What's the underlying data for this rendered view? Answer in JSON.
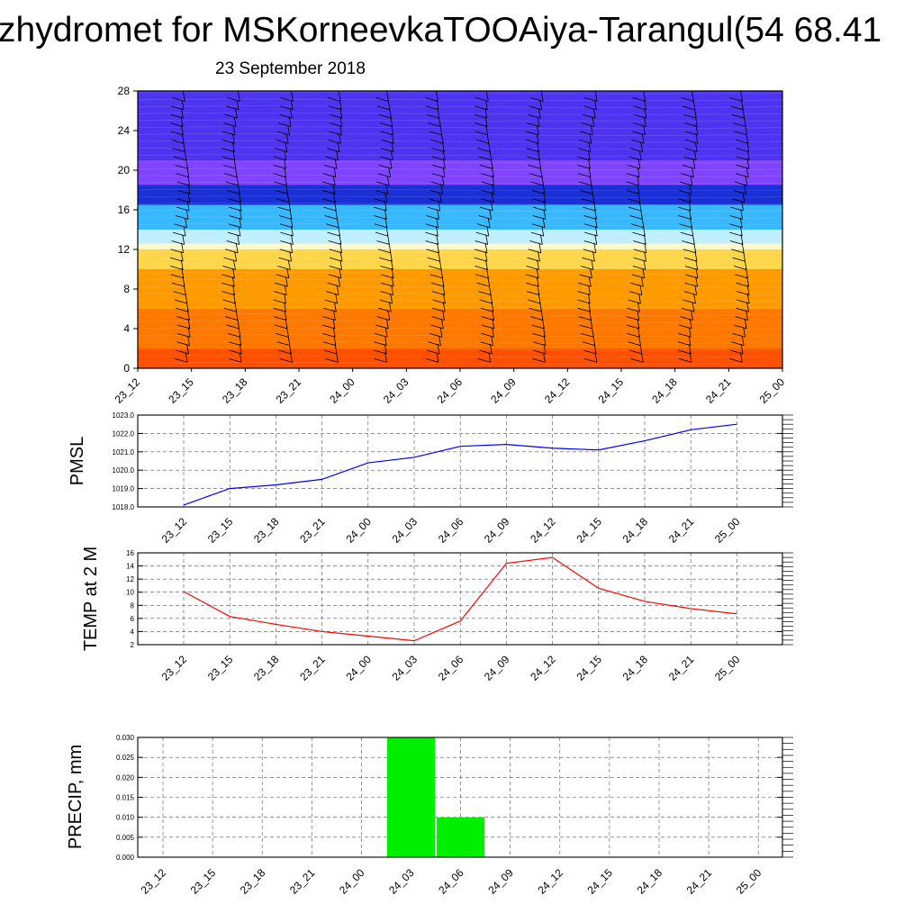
{
  "title": "zhydromet for MSKorneevkaTOOAiya-Tarangul(54 68.41",
  "subtitle": "23 September 2018",
  "time_labels": [
    "23_12",
    "23_15",
    "23_18",
    "23_21",
    "24_00",
    "24_03",
    "24_06",
    "24_09",
    "24_12",
    "24_15",
    "24_18",
    "24_21",
    "25_00"
  ],
  "chart_data": [
    {
      "type": "heatmap",
      "title": "",
      "xlabel": "",
      "ylabel": "",
      "x": [
        "23_12",
        "23_15",
        "23_18",
        "23_21",
        "24_00",
        "24_03",
        "24_06",
        "24_09",
        "24_12",
        "24_15",
        "24_18",
        "24_21",
        "25_00"
      ],
      "ylim": [
        0,
        28
      ],
      "yticks": [
        0,
        4,
        8,
        12,
        16,
        20,
        24,
        28
      ],
      "overlay": "wind barbs",
      "color_bands": [
        {
          "from": 0,
          "to": 2,
          "color": "#ff5000"
        },
        {
          "from": 2,
          "to": 6,
          "color": "#ff7800"
        },
        {
          "from": 6,
          "to": 10,
          "color": "#ff9a00"
        },
        {
          "from": 10,
          "to": 12,
          "color": "#ffd54a"
        },
        {
          "from": 12,
          "to": 12.6,
          "color": "#fff8c8"
        },
        {
          "from": 12.6,
          "to": 14,
          "color": "#bfeeff"
        },
        {
          "from": 14,
          "to": 16.5,
          "color": "#38b8ff"
        },
        {
          "from": 16.5,
          "to": 18.5,
          "color": "#1a2fd6"
        },
        {
          "from": 18.5,
          "to": 21,
          "color": "#7f44ff"
        },
        {
          "from": 21,
          "to": 28,
          "color": "#4e34f0"
        }
      ]
    },
    {
      "type": "line",
      "ylabel": "PMSL",
      "x": [
        "23_12",
        "23_15",
        "23_18",
        "23_21",
        "24_00",
        "24_03",
        "24_06",
        "24_09",
        "24_12",
        "24_15",
        "24_18",
        "24_21",
        "25_00"
      ],
      "series": [
        {
          "values": [
            1018.1,
            1019.0,
            1019.2,
            1019.5,
            1020.4,
            1020.7,
            1021.3,
            1021.4,
            1021.2,
            1021.1,
            1021.6,
            1022.2,
            1022.5
          ],
          "color": "#0000ff"
        }
      ],
      "ylim": [
        1018.0,
        1023.0
      ],
      "yticks": [
        "1018.0",
        "1019.0",
        "1020.0",
        "1021.0",
        "1022.0",
        "1023.0"
      ],
      "grid": true
    },
    {
      "type": "line",
      "ylabel": "TEMP at 2 M",
      "x": [
        "23_12",
        "23_15",
        "23_18",
        "23_21",
        "24_00",
        "24_03",
        "24_06",
        "24_09",
        "24_12",
        "24_15",
        "24_18",
        "24_21",
        "25_00"
      ],
      "series": [
        {
          "values": [
            10.1,
            6.3,
            5.1,
            4.0,
            3.3,
            2.6,
            5.6,
            14.4,
            15.3,
            10.6,
            8.6,
            7.5,
            6.7
          ],
          "color": "#ff0000"
        }
      ],
      "ylim": [
        2,
        16
      ],
      "yticks": [
        "2",
        "4",
        "6",
        "8",
        "10",
        "12",
        "14",
        "16"
      ],
      "grid": true
    },
    {
      "type": "bar",
      "ylabel": "PRECIP, mm",
      "categories": [
        "23_12",
        "23_15",
        "23_18",
        "23_21",
        "24_00",
        "24_03",
        "24_06",
        "24_09",
        "24_12",
        "24_15",
        "24_18",
        "24_21",
        "25_00"
      ],
      "values": [
        0,
        0,
        0,
        0,
        0,
        0.03,
        0.01,
        0,
        0,
        0,
        0,
        0,
        0
      ],
      "color": "#00ee00",
      "ylim": [
        0,
        0.03
      ],
      "yticks": [
        "0.000",
        "0.005",
        "0.010",
        "0.015",
        "0.020",
        "0.025",
        "0.030"
      ],
      "grid": true
    }
  ]
}
